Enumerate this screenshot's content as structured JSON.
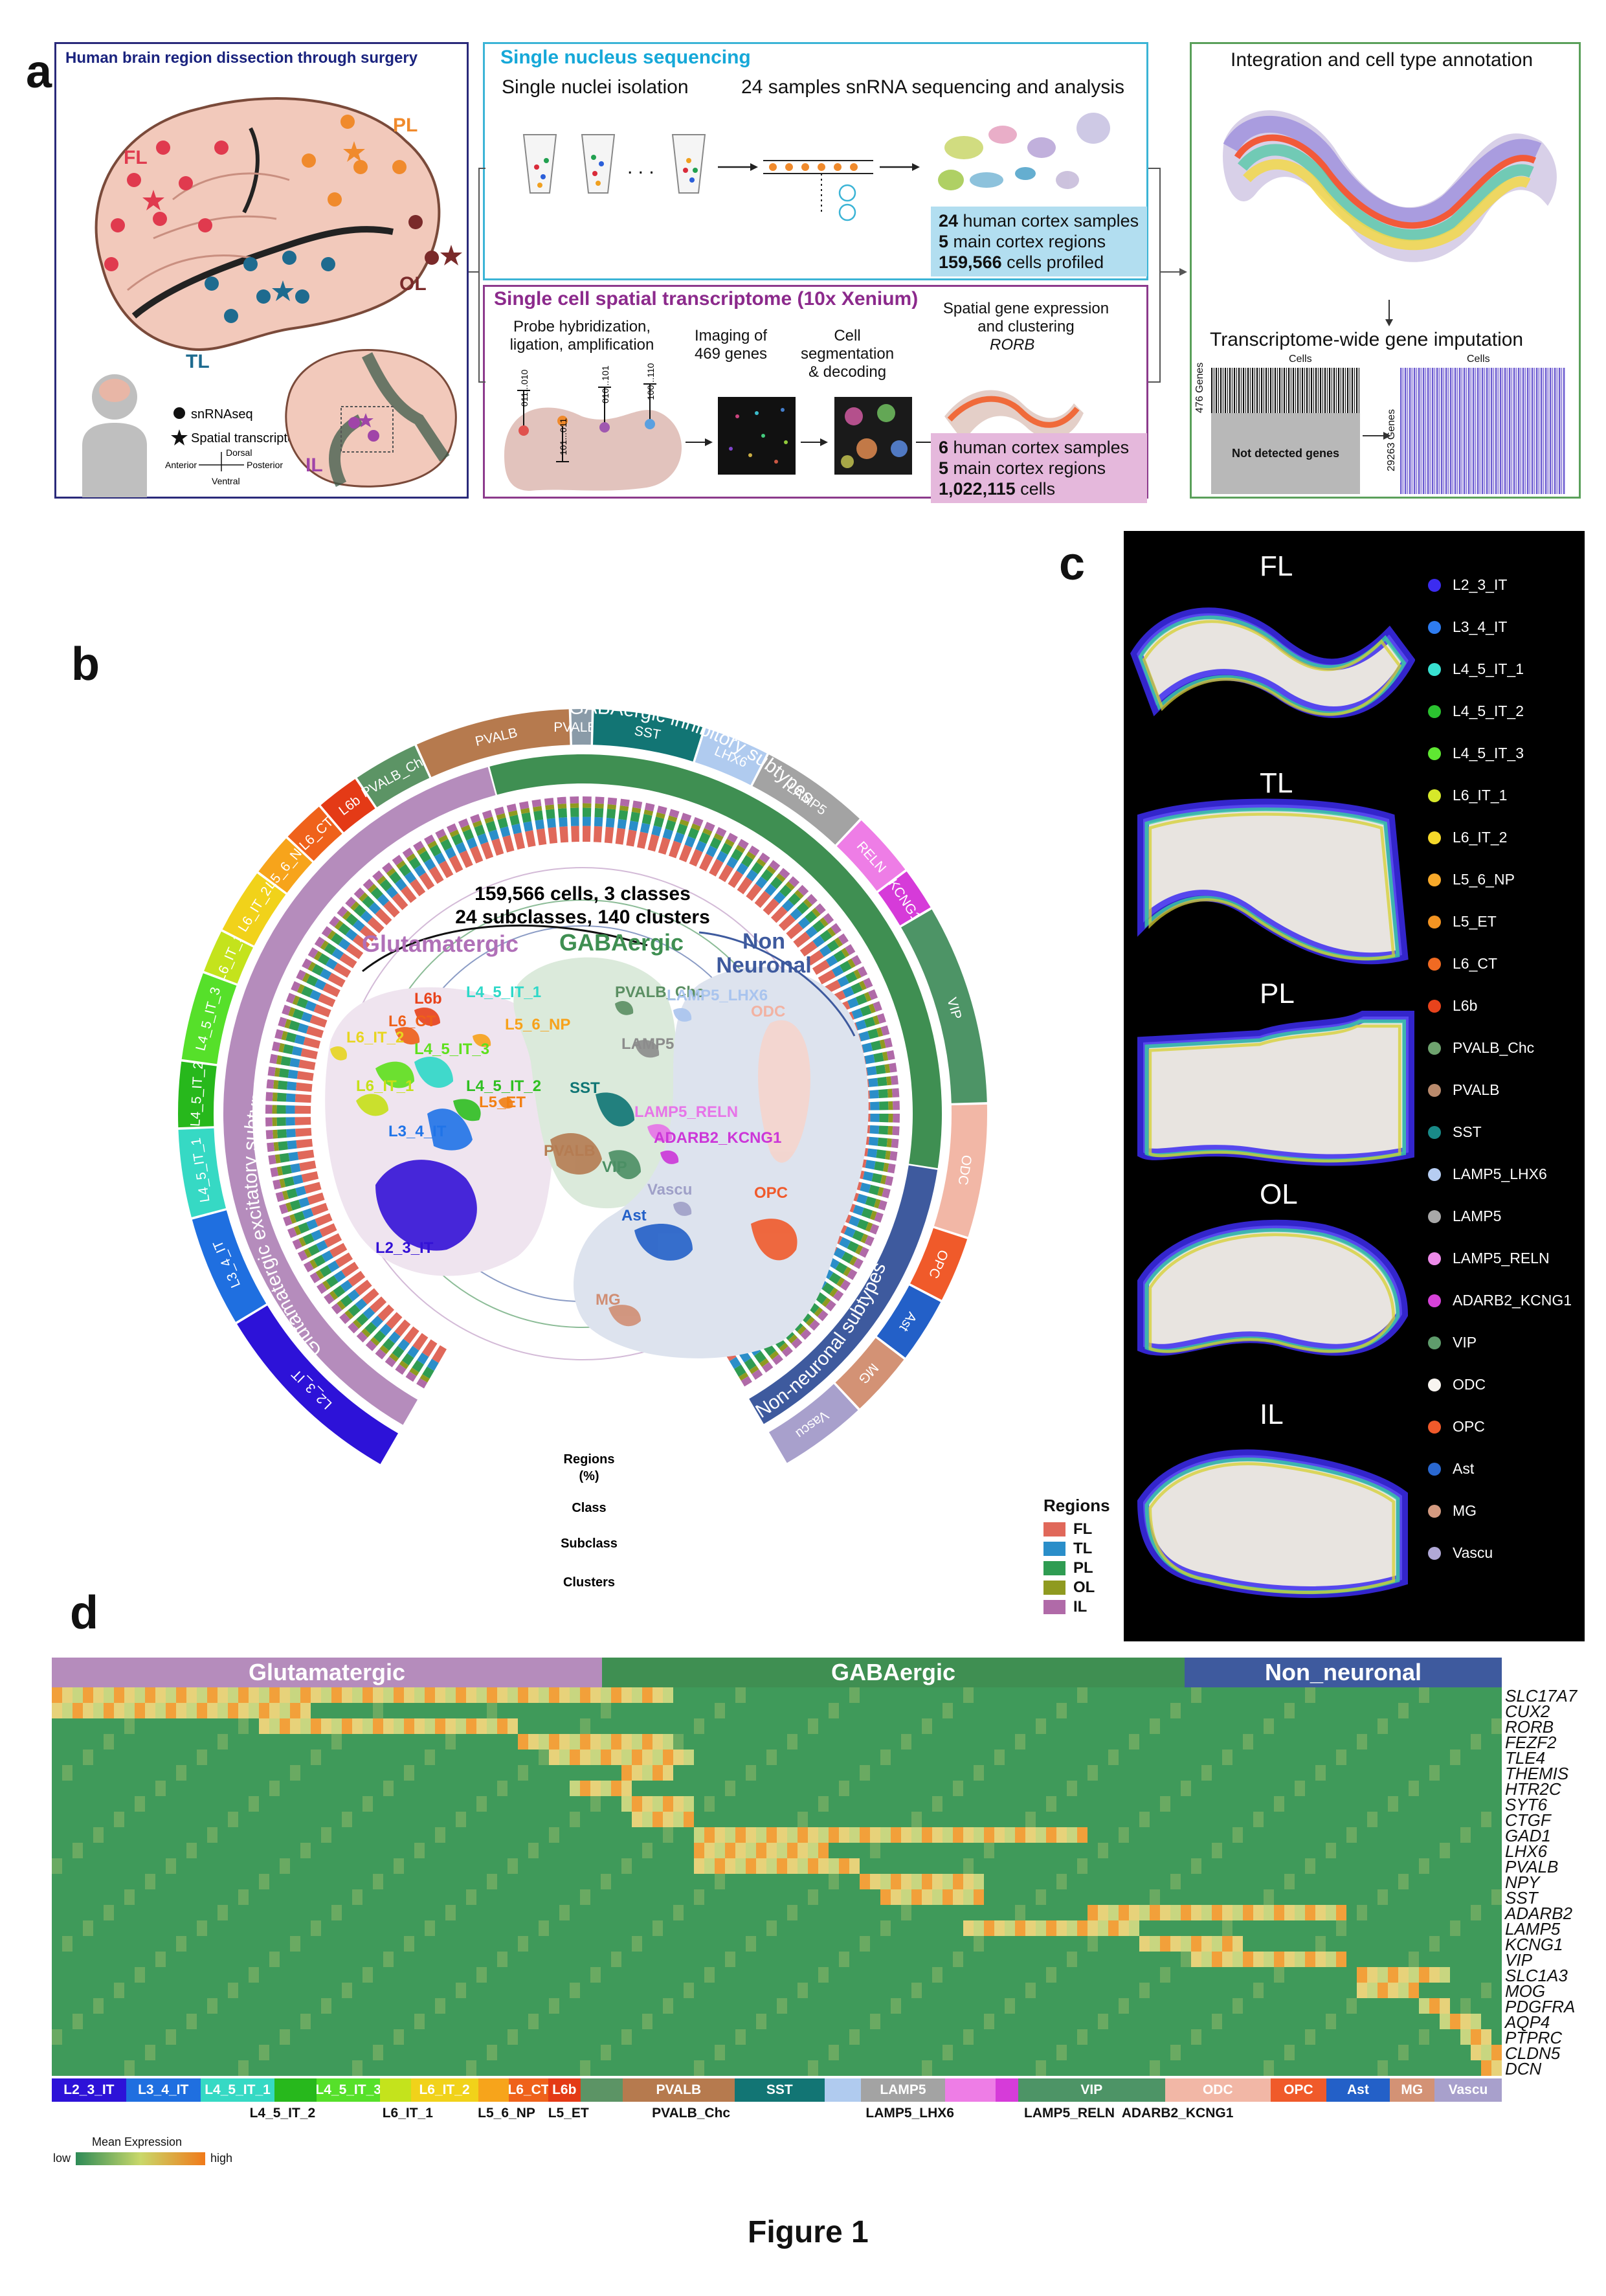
{
  "figure_title": "Figure 1",
  "panel_a": {
    "letter": "a",
    "brain_box_title": "Human brain region dissection through surgery",
    "regions": [
      "FL",
      "PL",
      "TL",
      "OL",
      "IL"
    ],
    "legend": {
      "snrna": "snRNAseq",
      "spatial": "Spatial transcriptomic"
    },
    "axes": {
      "dorsal": "Dorsal",
      "ventral": "Ventral",
      "anterior": "Anterior",
      "posterior": "Posterior"
    },
    "snseq": {
      "title": "Single nucleus sequencing",
      "step1": "Single nuclei isolation",
      "step2": "24 samples snRNA sequencing and analysis",
      "dots": ". . .",
      "info": [
        {
          "num": "24",
          "text": " human cortex samples"
        },
        {
          "num": "5",
          "text": " main cortex regions"
        },
        {
          "num": "159,566",
          "text": " cells profiled"
        }
      ]
    },
    "spatial": {
      "title": "Single cell spatial transcriptome (10x Xenium)",
      "step1": "Probe hybridization,",
      "step1b": "ligation, amplification",
      "step2": "Imaging of",
      "step2b": "469 genes",
      "step3": "Cell segmentation",
      "step3b": "& decoding",
      "step4": "Spatial gene expression",
      "step4b": "and clustering",
      "gene": "RORB",
      "codes": [
        "011...010",
        "101...011",
        "010...101",
        "100...110"
      ],
      "info": [
        {
          "num": "6",
          "text": " human cortex samples"
        },
        {
          "num": "5",
          "text": " main cortex regions"
        },
        {
          "num": "1,022,115",
          "text": " cells"
        }
      ]
    },
    "integration": {
      "title": "Integration and cell type annotation",
      "impute_title": "Transcriptome-wide gene imputation",
      "cells": "Cells",
      "genes476": "476 Genes",
      "genes29263": "29263 Genes",
      "not_detected": "Not detected genes"
    }
  },
  "panel_b": {
    "letter": "b",
    "center_text1": "159,566 cells, 3 classes",
    "center_text2": "24 subclasses, 140 clusters",
    "class_labels": {
      "glut": "Glutamatergic",
      "gaba": "GABAergic",
      "non": "Non",
      "non2": "Neuronal"
    },
    "arc_labels": {
      "gaba_inh": "GABAergic inhibitory subtypes",
      "glut_exc": "Glutamatergic excitatory subtypes",
      "non_neu": "Non-neuronal subtypes"
    },
    "ring_labels": {
      "regions": "Regions",
      "pct": "(%)",
      "class": "Class",
      "subclass": "Subclass",
      "clusters": "Clusters"
    },
    "umap_labels": [
      {
        "text": "L6b",
        "color": "#e8421b"
      },
      {
        "text": "L4_5_IT_1",
        "color": "#2ed8c8"
      },
      {
        "text": "L5_6_NP",
        "color": "#f7a21b"
      },
      {
        "text": "L6_CT",
        "color": "#ee6019"
      },
      {
        "text": "L6_IT_2",
        "color": "#e7d520"
      },
      {
        "text": "L4_5_IT_3",
        "color": "#5ee01c"
      },
      {
        "text": "L4_5_IT_2",
        "color": "#2fbf21"
      },
      {
        "text": "L6_IT_1",
        "color": "#c6e019"
      },
      {
        "text": "L5_ET",
        "color": "#f28014"
      },
      {
        "text": "L3_4_IT",
        "color": "#2074e8"
      },
      {
        "text": "L2_3_IT",
        "color": "#3311d6"
      },
      {
        "text": "PVALB_Chc",
        "color": "#5b8f63"
      },
      {
        "text": "LAMP5_LHX6",
        "color": "#a9c4ee"
      },
      {
        "text": "LAMP5",
        "color": "#8c8c8c"
      },
      {
        "text": "SST",
        "color": "#0f7574"
      },
      {
        "text": "LAMP5_RELN",
        "color": "#e774e8"
      },
      {
        "text": "ADARB2_KCNG1",
        "color": "#cc37d8"
      },
      {
        "text": "PVALB",
        "color": "#b57c52"
      },
      {
        "text": "VIP",
        "color": "#4b8f64"
      },
      {
        "text": "ODC",
        "color": "#f2b2a2"
      },
      {
        "text": "Vascu",
        "color": "#9fa0c8"
      },
      {
        "text": "OPC",
        "color": "#f05a2b"
      },
      {
        "text": "Ast",
        "color": "#2360c8"
      },
      {
        "text": "MG",
        "color": "#d08e74"
      }
    ],
    "subclass_arc": [
      {
        "name": "L2_3_IT",
        "color": "#2d12d8"
      },
      {
        "name": "L3_4_IT",
        "color": "#1f6fe0"
      },
      {
        "name": "L4_5_IT_1",
        "color": "#36d9c4"
      },
      {
        "name": "L4_5_IT_2",
        "color": "#27b81c"
      },
      {
        "name": "L4_5_IT_3",
        "color": "#56e02a"
      },
      {
        "name": "L6_IT_1",
        "color": "#c4e31c"
      },
      {
        "name": "L6_IT_2",
        "color": "#f1d21a"
      },
      {
        "name": "L5_6_NP",
        "color": "#f7a41b"
      },
      {
        "name": "L6_CT",
        "color": "#ef621b"
      },
      {
        "name": "L6b",
        "color": "#e43a16"
      },
      {
        "name": "PVALB_Chc",
        "color": "#5c9465"
      },
      {
        "name": "PVALB",
        "color": "#b67a4e"
      },
      {
        "name": "PVALB_9",
        "color": "#8a9ba8"
      },
      {
        "name": "SST",
        "color": "#127574"
      },
      {
        "name": "LHX6",
        "color": "#b0cbef"
      },
      {
        "name": "LAMP5",
        "color": "#a3a3a3"
      },
      {
        "name": "RELN",
        "color": "#ee7de6"
      },
      {
        "name": "KCNG1",
        "color": "#d63bd9"
      },
      {
        "name": "VIP",
        "color": "#4d9466"
      },
      {
        "name": "ODC",
        "color": "#f2b7a6"
      },
      {
        "name": "OPC",
        "color": "#f05a2a"
      },
      {
        "name": "Ast",
        "color": "#2360c8"
      },
      {
        "name": "MG",
        "color": "#d39275"
      },
      {
        "name": "Vascu",
        "color": "#a8a0cc"
      }
    ],
    "region_legend": {
      "title": "Regions",
      "items": [
        {
          "name": "FL",
          "color": "#e0685a"
        },
        {
          "name": "TL",
          "color": "#2a8ec9"
        },
        {
          "name": "PL",
          "color": "#2f9c52"
        },
        {
          "name": "OL",
          "color": "#8f9a20"
        },
        {
          "name": "IL",
          "color": "#b06aa8"
        }
      ]
    }
  },
  "panel_c": {
    "letter": "c",
    "sections": [
      "FL",
      "TL",
      "PL",
      "OL",
      "IL"
    ],
    "legend": [
      {
        "name": "L2_3_IT",
        "color": "#3c2cf0"
      },
      {
        "name": "L3_4_IT",
        "color": "#2e7cf0"
      },
      {
        "name": "L4_5_IT_1",
        "color": "#38e0d0"
      },
      {
        "name": "L4_5_IT_2",
        "color": "#2bc230"
      },
      {
        "name": "L4_5_IT_3",
        "color": "#5fe832"
      },
      {
        "name": "L6_IT_1",
        "color": "#d6e82a"
      },
      {
        "name": "L6_IT_2",
        "color": "#f5d82a"
      },
      {
        "name": "L5_6_NP",
        "color": "#f7a92a"
      },
      {
        "name": "L5_ET",
        "color": "#f39422"
      },
      {
        "name": "L6_CT",
        "color": "#f06a22"
      },
      {
        "name": "L6b",
        "color": "#e8431c"
      },
      {
        "name": "PVALB_Chc",
        "color": "#6ea26e"
      },
      {
        "name": "PVALB",
        "color": "#b98a6c"
      },
      {
        "name": "SST",
        "color": "#198a88"
      },
      {
        "name": "LAMP5_LHX6",
        "color": "#b6cdf2"
      },
      {
        "name": "LAMP5",
        "color": "#a8a8a8"
      },
      {
        "name": "LAMP5_RELN",
        "color": "#ec8ae8"
      },
      {
        "name": "ADARB2_KCNG1",
        "color": "#d642d8"
      },
      {
        "name": "VIP",
        "color": "#5f9c6c"
      },
      {
        "name": "ODC",
        "color": "#f8f4f0"
      },
      {
        "name": "OPC",
        "color": "#f05a2b"
      },
      {
        "name": "Ast",
        "color": "#2a68d0"
      },
      {
        "name": "MG",
        "color": "#d39a80"
      },
      {
        "name": "Vascu",
        "color": "#b0a8d6"
      }
    ]
  },
  "panel_d": {
    "letter": "d",
    "classes": [
      {
        "name": "Glutamatergic",
        "color": "#b58cbc"
      },
      {
        "name": "GABAergic",
        "color": "#3f8f52"
      },
      {
        "name": "Non_neuronal",
        "color": "#3e5a9e"
      }
    ],
    "genes": [
      "SLC17A7",
      "CUX2",
      "RORB",
      "FEZF2",
      "TLE4",
      "THEMIS",
      "HTR2C",
      "SYT6",
      "CTGF",
      "GAD1",
      "LHX6",
      "PVALB",
      "NPY",
      "SST",
      "ADARB2",
      "LAMP5",
      "KCNG1",
      "VIP",
      "SLC1A3",
      "MOG",
      "PDGFRA",
      "AQP4",
      "PTPRC",
      "CLDN5",
      "DCN"
    ],
    "subclass_bar": [
      {
        "name": "L2_3_IT",
        "color": "#2d12d8",
        "w": 53
      },
      {
        "name": "L3_4_IT",
        "color": "#1f6fe0",
        "w": 53
      },
      {
        "name": "L4_5_IT_1",
        "color": "#36d9c4",
        "w": 53
      },
      {
        "name": "",
        "color": "#27b81c",
        "w": 30
      },
      {
        "name": "L4_5_IT_3",
        "color": "#56e02a",
        "w": 45
      },
      {
        "name": "",
        "color": "#c4e31c",
        "w": 22
      },
      {
        "name": "L6_IT_2",
        "color": "#f1d21a",
        "w": 48
      },
      {
        "name": "",
        "color": "#f7a41b",
        "w": 22
      },
      {
        "name": "L6_CT",
        "color": "#ef621b",
        "w": 28
      },
      {
        "name": "L6b",
        "color": "#e43a16",
        "w": 23
      },
      {
        "name": "",
        "color": "#5c9465",
        "w": 30
      },
      {
        "name": "PVALB",
        "color": "#b67a4e",
        "w": 80
      },
      {
        "name": "SST",
        "color": "#127574",
        "w": 64
      },
      {
        "name": "",
        "color": "#b0cbef",
        "w": 26
      },
      {
        "name": "LAMP5",
        "color": "#a3a3a3",
        "w": 60
      },
      {
        "name": "",
        "color": "#ee7de6",
        "w": 36
      },
      {
        "name": "",
        "color": "#d63bd9",
        "w": 16
      },
      {
        "name": "VIP",
        "color": "#4d9466",
        "w": 105
      },
      {
        "name": "ODC",
        "color": "#f2b7a6",
        "w": 75
      },
      {
        "name": "OPC",
        "color": "#f05a2a",
        "w": 40
      },
      {
        "name": "Ast",
        "color": "#2360c8",
        "w": 45
      },
      {
        "name": "MG",
        "color": "#d39275",
        "w": 32
      },
      {
        "name": "Vascu",
        "color": "#a8a0cc",
        "w": 48
      }
    ],
    "below_labels": [
      {
        "text": "L4_5_IT_2",
        "pos": 175
      },
      {
        "text": "L6_IT_1",
        "pos": 270
      },
      {
        "text": "L5_6_NP",
        "pos": 345
      },
      {
        "text": "L5_ET",
        "pos": 392
      },
      {
        "text": "PVALB_Chc",
        "pos": 485
      },
      {
        "text": "LAMP5_LHX6",
        "pos": 651
      },
      {
        "text": "LAMP5_RELN",
        "pos": 772
      },
      {
        "text": "ADARB2_KCNG1",
        "pos": 854
      }
    ],
    "colorbar": {
      "title": "Mean Expression",
      "low": "low",
      "high": "high"
    }
  }
}
